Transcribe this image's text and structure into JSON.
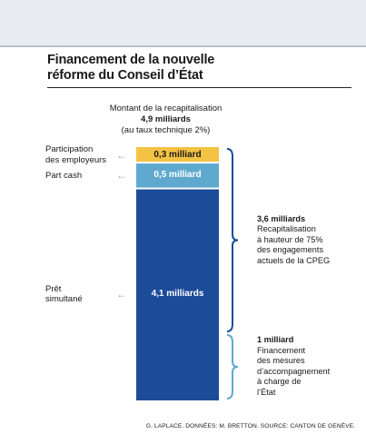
{
  "title_line1": "Financement de la nouvelle",
  "title_line2": "réforme du Conseil d’État",
  "header": {
    "line1": "Montant de la recapitalisation",
    "amount": "4,9 milliards",
    "line3": "(au taux technique 2%)"
  },
  "chart_data": {
    "type": "bar",
    "stacked": true,
    "unit": "milliards",
    "total": 4.9,
    "segments": [
      {
        "name": "Prêt simultané",
        "value": 4.1,
        "label": "4,1 milliards",
        "color": "#1c4b99"
      },
      {
        "name": "Part cash",
        "value": 0.5,
        "label": "0,5 milliard",
        "color": "#5fa9cf"
      },
      {
        "name": "Participation des employeurs",
        "value": 0.3,
        "label": "0,3 milliard",
        "color": "#f5c344"
      }
    ],
    "left_labels": [
      {
        "lines": [
          "Prêt",
          "simultané"
        ]
      },
      {
        "lines": [
          "Part cash"
        ]
      },
      {
        "lines": [
          "Participation",
          "des employeurs"
        ]
      }
    ],
    "brackets": [
      {
        "value": 3.6,
        "bold": "3,6 milliards",
        "lines": [
          "Recapitalisation",
          "à hauteur de 75%",
          "des engagements",
          "actuels de la CPEG"
        ],
        "color": "#1c4b99"
      },
      {
        "value": 1.3,
        "bold": "1 milliard",
        "lines": [
          "Financement",
          "des mesures",
          "d’accompagnement",
          "à charge de",
          "l’État"
        ],
        "color": "#5fa9cf"
      }
    ]
  },
  "source": "G. LAPLACE. DONNÉES: M. BRETTON. SOURCE: CANTON DE GENÈVE."
}
